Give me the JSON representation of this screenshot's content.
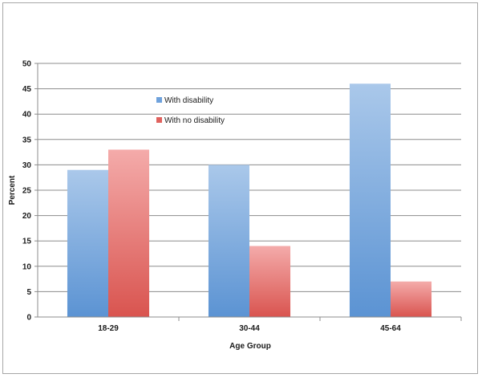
{
  "chart_data": {
    "type": "bar",
    "categories": [
      "18-29",
      "30-44",
      "45-64"
    ],
    "series": [
      {
        "name": "With disability",
        "values": [
          29,
          30,
          46
        ],
        "color": "#5b93d3",
        "color_light": "#aac8ea"
      },
      {
        "name": "With no disability",
        "values": [
          33,
          14,
          7
        ],
        "color": "#d9544f",
        "color_light": "#f4abaa"
      }
    ],
    "title": "",
    "xlabel": "Age Group",
    "ylabel": "Percent",
    "ylim": [
      0,
      50
    ],
    "yticks": [
      "0",
      "5",
      "10",
      "15",
      "20",
      "25",
      "30",
      "35",
      "40",
      "45",
      "50"
    ],
    "grid": true,
    "legend_position": "top-left inside plot"
  }
}
